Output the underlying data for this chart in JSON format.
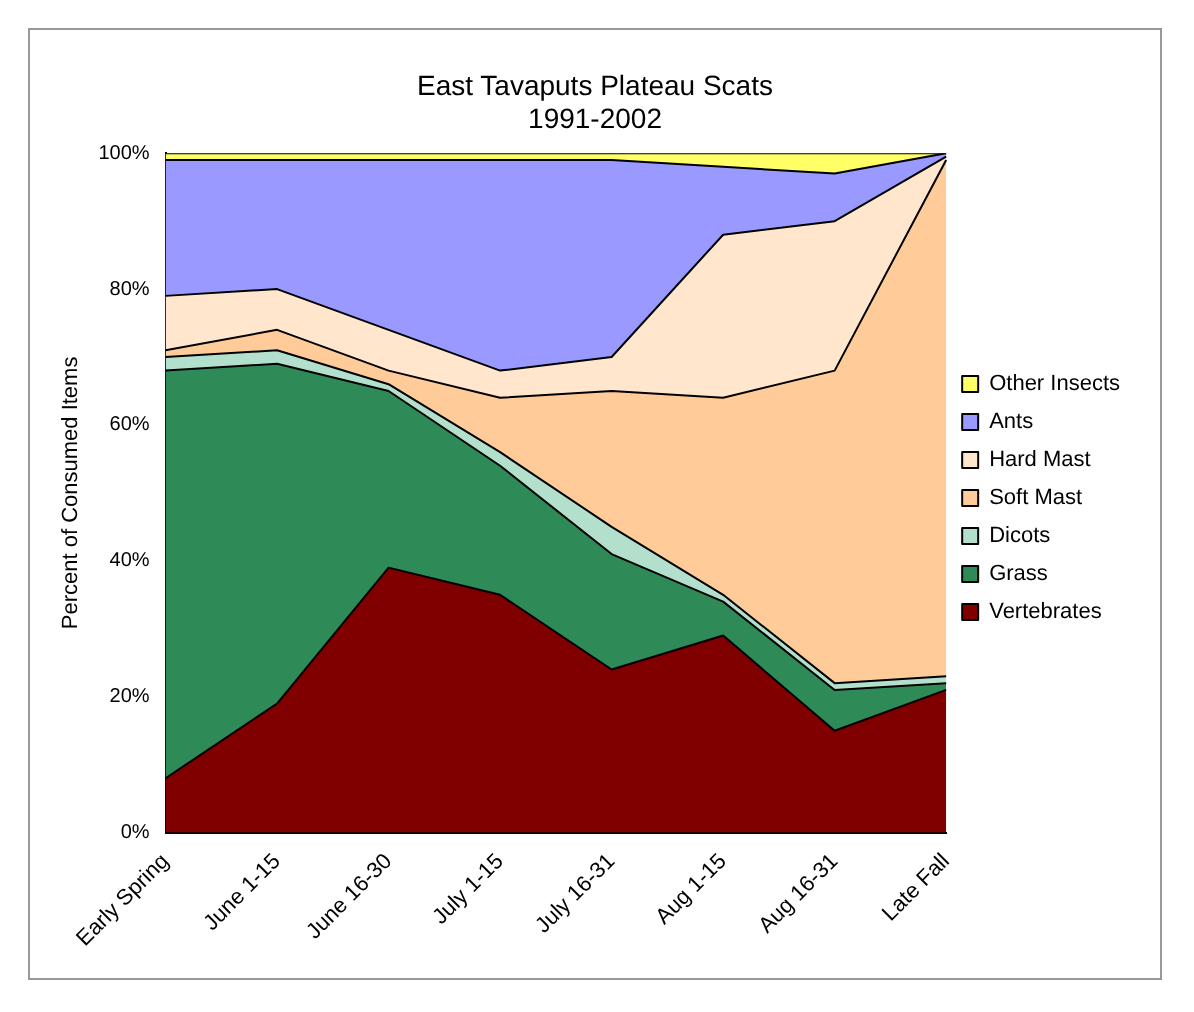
{
  "chart_data": {
    "type": "area",
    "title": "East Tavaputs Plateau Scats",
    "subtitle": "1991-2002",
    "ylabel": "Percent of Consumed Items",
    "categories": [
      "Early Spring",
      "June 1-15",
      "June 16-30",
      "July 1-15",
      "July 16-31",
      "Aug 1-15",
      "Aug 16-31",
      "Late Fall"
    ],
    "stacked": true,
    "ylim": [
      0,
      100
    ],
    "yticks": [
      {
        "value": 0,
        "label": "0%"
      },
      {
        "value": 20,
        "label": "20%"
      },
      {
        "value": 40,
        "label": "40%"
      },
      {
        "value": 60,
        "label": "60%"
      },
      {
        "value": 80,
        "label": "80%"
      },
      {
        "value": 100,
        "label": "100%"
      }
    ],
    "legend": "right",
    "series": [
      {
        "name": "Vertebrates",
        "color": "#800000",
        "values": [
          8,
          19,
          39,
          35,
          24,
          29,
          15,
          21
        ]
      },
      {
        "name": "Grass",
        "color": "#2e8b57",
        "values": [
          60,
          50,
          26,
          19,
          17,
          5,
          6,
          1
        ]
      },
      {
        "name": "Dicots",
        "color": "#b3e0cc",
        "values": [
          2,
          2,
          1,
          2,
          4,
          1,
          1,
          1
        ]
      },
      {
        "name": "Soft Mast",
        "color": "#ffcc99",
        "values": [
          1,
          3,
          2,
          8,
          20,
          29,
          46,
          76
        ]
      },
      {
        "name": "Hard Mast",
        "color": "#ffe6cc",
        "values": [
          8,
          6,
          6,
          4,
          5,
          24,
          22,
          0.5
        ]
      },
      {
        "name": "Ants",
        "color": "#9999ff",
        "values": [
          20,
          19,
          25,
          31,
          29,
          10,
          7,
          0.5
        ]
      },
      {
        "name": "Other Insects",
        "color": "#ffff66",
        "values": [
          1,
          1,
          1,
          1,
          1,
          2,
          3,
          0
        ]
      }
    ]
  }
}
